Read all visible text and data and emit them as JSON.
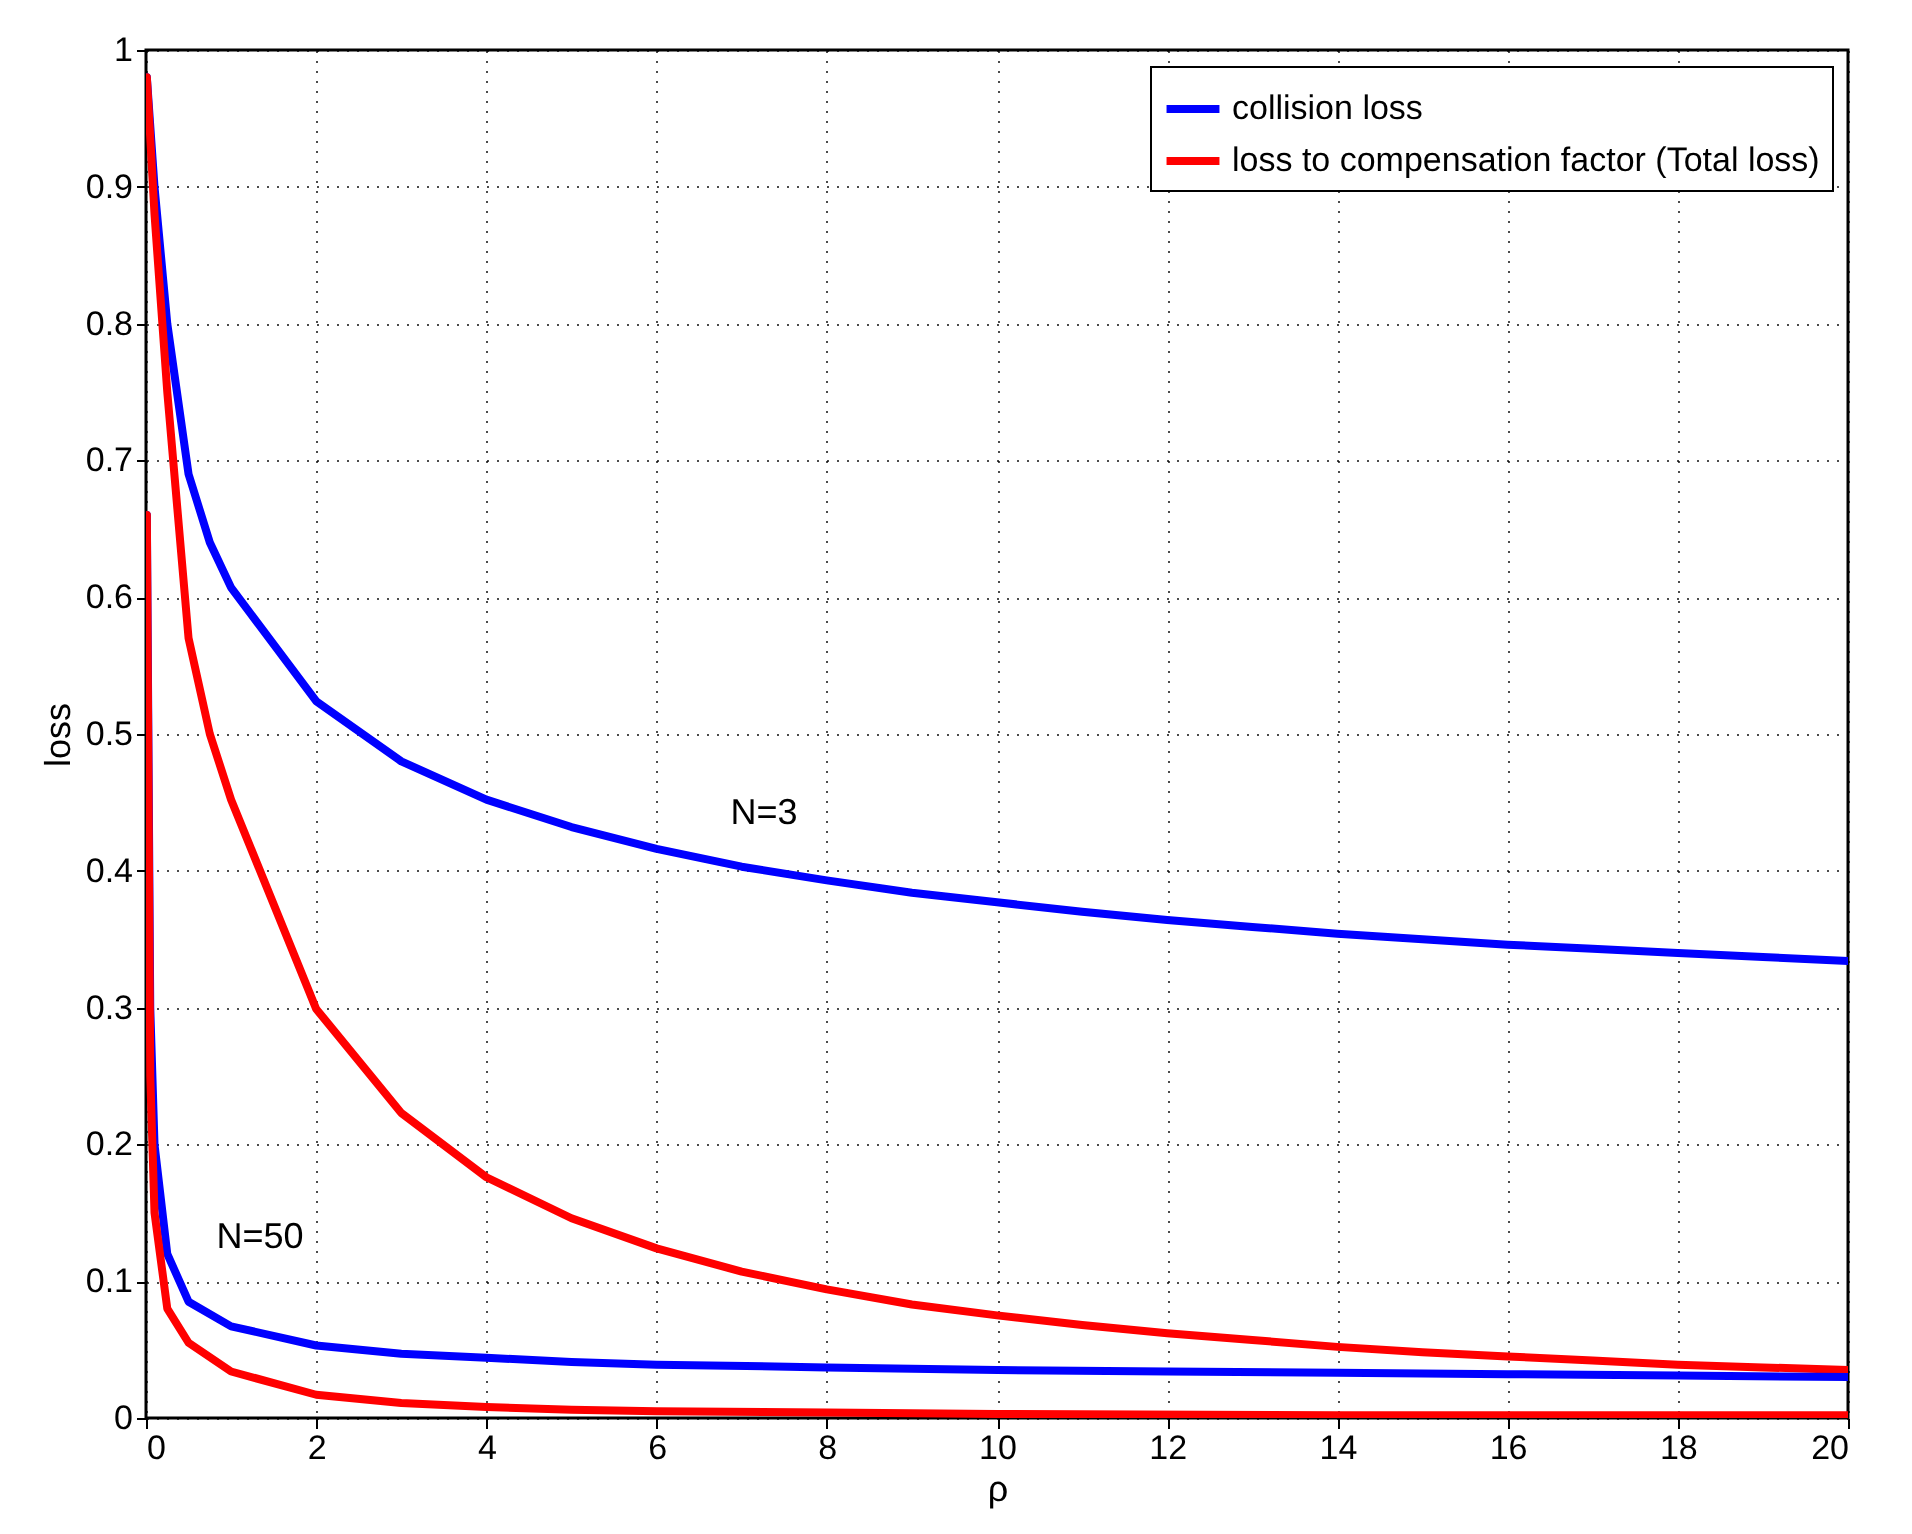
{
  "chart_data": {
    "type": "line",
    "xlabel": "ρ",
    "ylabel": "loss",
    "xlim": [
      0,
      20
    ],
    "ylim": [
      0,
      1
    ],
    "xticks": [
      0,
      2,
      4,
      6,
      8,
      10,
      12,
      14,
      16,
      18,
      20
    ],
    "yticks": [
      0,
      0.1,
      0.2,
      0.3,
      0.4,
      0.5,
      0.6,
      0.7,
      0.8,
      0.9,
      1
    ],
    "grid": true,
    "legend": "top right",
    "line_style": "solid",
    "series": [
      {
        "name": "collision loss",
        "color": "#0000ff",
        "x": [
          0.01,
          0.1,
          0.25,
          0.5,
          0.75,
          1,
          2,
          3,
          4,
          5,
          6,
          7,
          8,
          9,
          10,
          11,
          12,
          13,
          14,
          15,
          16,
          17,
          18,
          19,
          20
        ],
        "values": [
          0.98,
          0.9,
          0.8,
          0.69,
          0.64,
          0.607,
          0.524,
          0.48,
          0.452,
          0.432,
          0.416,
          0.403,
          0.393,
          0.384,
          0.377,
          0.37,
          0.364,
          0.359,
          0.354,
          0.35,
          0.346,
          0.343,
          0.34,
          0.337,
          0.334
        ]
      },
      {
        "name": "loss to compensation factor (Total loss)",
        "color": "#ff0000",
        "x": [
          0.01,
          0.1,
          0.25,
          0.5,
          0.75,
          1,
          2,
          3,
          4,
          5,
          6,
          7,
          8,
          9,
          10,
          11,
          12,
          13,
          14,
          15,
          16,
          17,
          18,
          19,
          20
        ],
        "values": [
          0.98,
          0.88,
          0.75,
          0.57,
          0.5,
          0.452,
          0.299,
          0.223,
          0.176,
          0.146,
          0.124,
          0.107,
          0.094,
          0.083,
          0.075,
          0.068,
          0.062,
          0.057,
          0.052,
          0.048,
          0.045,
          0.042,
          0.039,
          0.037,
          0.035
        ]
      },
      {
        "color": "#0000ff",
        "x": [
          0.01,
          0.05,
          0.1,
          0.25,
          0.5,
          1,
          2,
          3,
          4,
          5,
          6,
          8,
          10,
          12,
          14,
          16,
          18,
          20
        ],
        "values": [
          0.66,
          0.3,
          0.2,
          0.12,
          0.085,
          0.067,
          0.053,
          0.047,
          0.044,
          0.041,
          0.039,
          0.037,
          0.035,
          0.034,
          0.033,
          0.032,
          0.031,
          0.03
        ]
      },
      {
        "color": "#ff0000",
        "x": [
          0.01,
          0.05,
          0.1,
          0.25,
          0.5,
          1,
          2,
          3,
          4,
          5,
          6,
          8,
          10,
          14,
          20
        ],
        "values": [
          0.66,
          0.25,
          0.15,
          0.08,
          0.055,
          0.034,
          0.017,
          0.011,
          0.008,
          0.006,
          0.005,
          0.004,
          0.003,
          0.002,
          0.002
        ]
      }
    ],
    "annotations": [
      "N=3",
      "N=50"
    ]
  }
}
